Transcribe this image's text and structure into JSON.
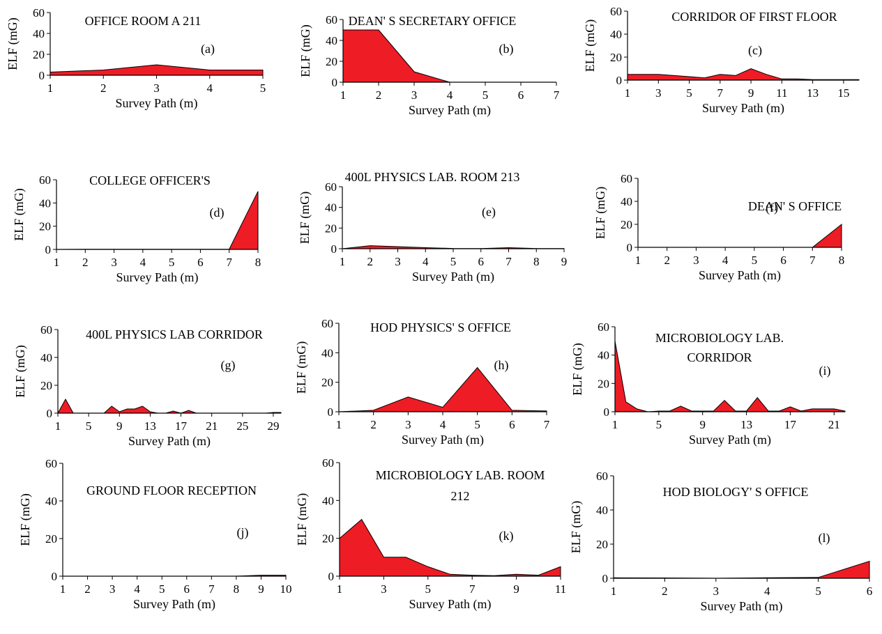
{
  "chart_data": [
    {
      "type": "area",
      "title": "OFFICE ROOM A 211",
      "label": "(a)",
      "xlabel": "Survey Path (m)",
      "ylabel": "ELF (mG)",
      "xlim": [
        1,
        5
      ],
      "ylim": [
        0,
        60
      ],
      "xticks": [
        1,
        2,
        3,
        4,
        5
      ],
      "yticks": [
        0,
        20,
        40,
        60
      ],
      "x": [
        1,
        2,
        3,
        4,
        5
      ],
      "values": [
        3,
        5,
        10,
        5,
        5
      ],
      "color": "#ee1c25"
    },
    {
      "type": "area",
      "title": "DEAN' S SECRETARY OFFICE",
      "label": "(b)",
      "xlabel": "Survey Path (m)",
      "ylabel": "ELF (mG)",
      "xlim": [
        1,
        7
      ],
      "ylim": [
        0,
        60
      ],
      "xticks": [
        1,
        2,
        3,
        4,
        5,
        6,
        7
      ],
      "yticks": [
        0,
        20,
        40,
        60
      ],
      "x": [
        1,
        2,
        3,
        4,
        5,
        6,
        7
      ],
      "values": [
        50,
        50,
        10,
        0,
        0,
        0,
        0
      ],
      "color": "#ee1c25"
    },
    {
      "type": "area",
      "title": "CORRIDOR OF FIRST FLOOR",
      "label": "(c)",
      "xlabel": "Survey Path (m)",
      "ylabel": "ELF (mG)",
      "xlim": [
        1,
        16
      ],
      "ylim": [
        0,
        60
      ],
      "xticks": [
        1,
        3,
        5,
        7,
        9,
        11,
        13,
        15
      ],
      "yticks": [
        0,
        20,
        40,
        60
      ],
      "x": [
        1,
        2,
        3,
        4,
        5,
        6,
        7,
        8,
        9,
        10,
        11,
        12,
        13,
        14,
        15,
        16
      ],
      "values": [
        5,
        5,
        5,
        4,
        3,
        2,
        5,
        4,
        10,
        5,
        1,
        1,
        0.5,
        0.5,
        0.5,
        0.5
      ],
      "color": "#ee1c25"
    },
    {
      "type": "area",
      "title": "COLLEGE OFFICER'S",
      "label": "(d)",
      "xlabel": "Survey Path (m)",
      "ylabel": "ELF (mG)",
      "xlim": [
        1,
        8
      ],
      "ylim": [
        0,
        60
      ],
      "xticks": [
        1,
        2,
        3,
        4,
        5,
        6,
        7,
        8
      ],
      "yticks": [
        0,
        20,
        40,
        60
      ],
      "x": [
        1,
        2,
        3,
        4,
        5,
        6,
        7,
        8
      ],
      "values": [
        0,
        0.2,
        0.2,
        0.2,
        0.2,
        0.2,
        0.2,
        50
      ],
      "color": "#ee1c25"
    },
    {
      "type": "area",
      "title": "400L PHYSICS LAB. ROOM 213",
      "label": "(e)",
      "xlabel": "Survey Path (m)",
      "ylabel": "ELF (mG)",
      "xlim": [
        1,
        9
      ],
      "ylim": [
        0,
        60
      ],
      "xticks": [
        1,
        2,
        3,
        4,
        5,
        6,
        7,
        8,
        9
      ],
      "yticks": [
        0,
        20,
        40,
        60
      ],
      "x": [
        1,
        2,
        3,
        4,
        5,
        6,
        7,
        8,
        9
      ],
      "values": [
        0,
        3,
        2,
        1,
        0.3,
        0.2,
        1,
        0.2,
        0.2
      ],
      "color": "#ee1c25"
    },
    {
      "type": "area",
      "title": "DEAN' S OFFICE",
      "label": "(f)",
      "xlabel": "Survey Path (m)",
      "ylabel": "ELF (mG)",
      "xlim": [
        1,
        8
      ],
      "ylim": [
        0,
        60
      ],
      "xticks": [
        1,
        2,
        3,
        4,
        5,
        6,
        7,
        8
      ],
      "yticks": [
        0,
        20,
        40,
        60
      ],
      "x": [
        1,
        2,
        3,
        4,
        5,
        6,
        7,
        8
      ],
      "values": [
        0,
        0,
        0,
        0,
        0,
        0,
        0,
        20
      ],
      "color": "#ee1c25"
    },
    {
      "type": "area",
      "title": "400L PHYSICS LAB CORRIDOR",
      "label": "(g)",
      "xlabel": "Survey Path (m)",
      "ylabel": "ELF (mG)",
      "xlim": [
        1,
        30
      ],
      "ylim": [
        0,
        60
      ],
      "xticks": [
        1,
        5,
        9,
        13,
        17,
        21,
        25,
        29
      ],
      "yticks": [
        0,
        20,
        40,
        60
      ],
      "x": [
        1,
        2,
        3,
        4,
        5,
        6,
        7,
        8,
        9,
        10,
        11,
        12,
        13,
        14,
        15,
        16,
        17,
        18,
        19,
        20,
        21,
        22,
        23,
        24,
        25,
        26,
        27,
        28,
        29,
        30
      ],
      "values": [
        0,
        10,
        0,
        0,
        0,
        0,
        0,
        5,
        1,
        3,
        3,
        5,
        1,
        0,
        0,
        1.5,
        0,
        2,
        0,
        0,
        0,
        0,
        0,
        0,
        0,
        0,
        0,
        0,
        0.5,
        0.5
      ],
      "color": "#ee1c25"
    },
    {
      "type": "area",
      "title": "HOD PHYSICS' S OFFICE",
      "label": "(h)",
      "xlabel": "Survey Path (m)",
      "ylabel": "ELF (mG)",
      "xlim": [
        1,
        7
      ],
      "ylim": [
        0,
        60
      ],
      "xticks": [
        1,
        2,
        3,
        4,
        5,
        6,
        7
      ],
      "yticks": [
        0,
        20,
        40,
        60
      ],
      "x": [
        1,
        2,
        3,
        4,
        5,
        6,
        7
      ],
      "values": [
        0,
        1,
        10,
        3,
        30,
        1,
        0.5
      ],
      "color": "#ee1c25"
    },
    {
      "type": "area",
      "title": "MICROBIOLOGY LAB.",
      "title2": "CORRIDOR",
      "label": "(i)",
      "xlabel": "Survey Path (m)",
      "ylabel": "ELF (mG)",
      "xlim": [
        1,
        22
      ],
      "ylim": [
        0,
        60
      ],
      "xticks": [
        1,
        5,
        9,
        13,
        17,
        21
      ],
      "yticks": [
        0,
        20,
        40,
        60
      ],
      "x": [
        1,
        2,
        3,
        4,
        5,
        6,
        7,
        8,
        9,
        10,
        11,
        12,
        13,
        14,
        15,
        16,
        17,
        18,
        19,
        20,
        21,
        22
      ],
      "values": [
        50,
        7,
        2,
        0,
        0.5,
        0.5,
        4,
        0.5,
        0.5,
        0.5,
        8,
        0.5,
        0.5,
        10,
        0.5,
        0.5,
        3.5,
        0.5,
        2,
        2,
        2,
        0.5
      ],
      "color": "#ee1c25"
    },
    {
      "type": "area",
      "title": "GROUND FLOOR RECEPTION",
      "label": "(j)",
      "xlabel": "Survey Path (m)",
      "ylabel": "ELF (mG)",
      "xlim": [
        1,
        10
      ],
      "ylim": [
        0,
        60
      ],
      "xticks": [
        1,
        2,
        3,
        4,
        5,
        6,
        7,
        8,
        9,
        10
      ],
      "yticks": [
        0,
        20,
        40,
        60
      ],
      "x": [
        1,
        2,
        3,
        4,
        5,
        6,
        7,
        8,
        9,
        10
      ],
      "values": [
        0,
        0,
        0,
        0,
        0,
        0,
        0,
        0,
        0.5,
        0.5
      ],
      "color": "#ee1c25"
    },
    {
      "type": "area",
      "title": "MICROBIOLOGY LAB. ROOM",
      "title2": "212",
      "label": "(k)",
      "xlabel": "Survey Path (m)",
      "ylabel": "ELF (mG)",
      "xlim": [
        1,
        11
      ],
      "ylim": [
        0,
        60
      ],
      "xticks": [
        1,
        3,
        5,
        7,
        9,
        11
      ],
      "yticks": [
        0,
        20,
        40,
        60
      ],
      "x": [
        1,
        2,
        3,
        4,
        5,
        6,
        7,
        8,
        9,
        10,
        11
      ],
      "values": [
        20,
        30,
        10,
        10,
        5,
        1,
        0.5,
        0.3,
        1,
        0.5,
        5
      ],
      "color": "#ee1c25"
    },
    {
      "type": "area",
      "title": "HOD BIOLOGY' S OFFICE",
      "label": "(l)",
      "xlabel": "Survey Path (m)",
      "ylabel": "ELF (mG)",
      "xlim": [
        1,
        6
      ],
      "ylim": [
        0,
        60
      ],
      "xticks": [
        1,
        2,
        3,
        4,
        5,
        6
      ],
      "yticks": [
        0,
        20,
        40,
        60
      ],
      "x": [
        1,
        2,
        3,
        4,
        5,
        6
      ],
      "values": [
        0.3,
        0.2,
        0,
        0.3,
        0.5,
        10
      ],
      "color": "#ee1c25"
    }
  ]
}
